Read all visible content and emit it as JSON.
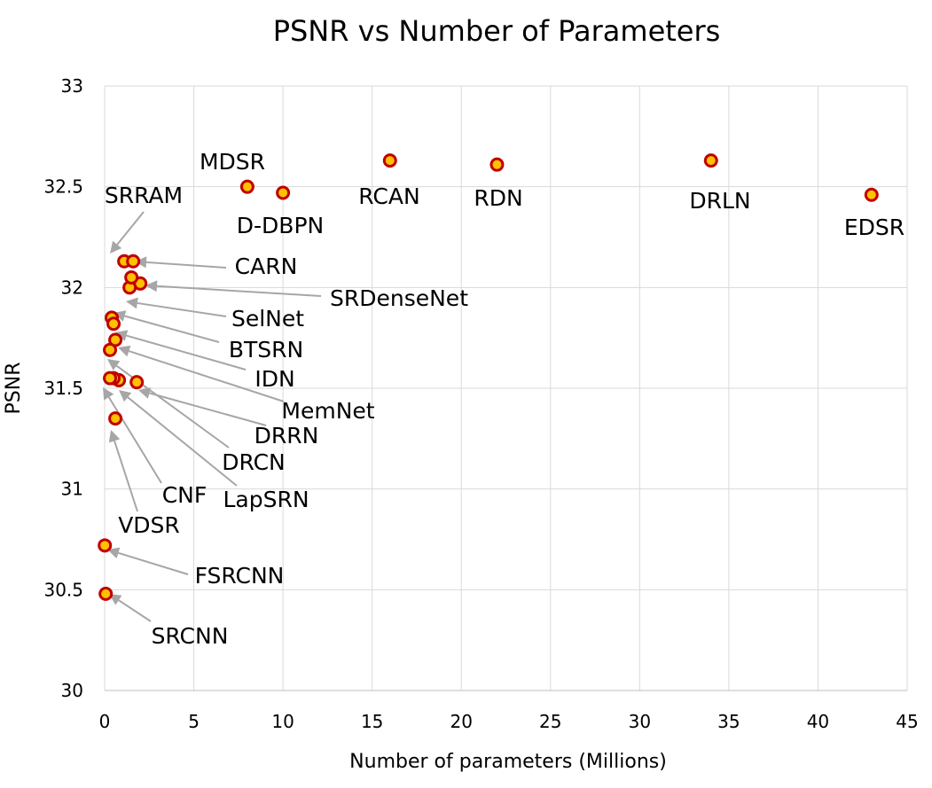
{
  "chart_data": {
    "type": "scatter",
    "title": "PSNR vs Number of Parameters",
    "xlabel": "Number of parameters (Millions)",
    "ylabel": "PSNR",
    "xlim": [
      0,
      45
    ],
    "ylim": [
      30,
      33
    ],
    "x_ticks": [
      "0",
      "5",
      "10",
      "15",
      "20",
      "25",
      "30",
      "35",
      "40",
      "45"
    ],
    "y_ticks": [
      "30",
      "30.5",
      "31",
      "31.5",
      "32",
      "32.5",
      "33"
    ],
    "grid": true,
    "marker_fill": "#FFC000",
    "marker_edge": "#C00000",
    "points": [
      {
        "name": "MDSR",
        "x": 8.0,
        "y": 32.5
      },
      {
        "name": "D-DBPN",
        "x": 10.0,
        "y": 32.47
      },
      {
        "name": "RCAN",
        "x": 16.0,
        "y": 32.63
      },
      {
        "name": "RDN",
        "x": 22.0,
        "y": 32.61
      },
      {
        "name": "DRLN",
        "x": 34.0,
        "y": 32.63
      },
      {
        "name": "EDSR",
        "x": 43.0,
        "y": 32.46
      },
      {
        "name": "SRRAM",
        "x": 1.1,
        "y": 32.13
      },
      {
        "name": "CARN",
        "x": 1.6,
        "y": 32.13
      },
      {
        "name": "SRDenseNet",
        "x": 2.0,
        "y": 32.02
      },
      {
        "name": "SelNet",
        "x": 1.4,
        "y": 32.0
      },
      {
        "name": "",
        "x": 1.5,
        "y": 32.05
      },
      {
        "name": "BTSRN",
        "x": 0.4,
        "y": 31.85
      },
      {
        "name": "",
        "x": 0.5,
        "y": 31.82
      },
      {
        "name": "IDN",
        "x": 0.6,
        "y": 31.74
      },
      {
        "name": "MemNet",
        "x": 0.3,
        "y": 31.69
      },
      {
        "name": "DRRN",
        "x": 1.8,
        "y": 31.53
      },
      {
        "name": "DRCN",
        "x": 0.8,
        "y": 31.54
      },
      {
        "name": "LapSRN",
        "x": 0.5,
        "y": 31.55
      },
      {
        "name": "CNF",
        "x": 0.3,
        "y": 31.55
      },
      {
        "name": "VDSR",
        "x": 0.6,
        "y": 31.35
      },
      {
        "name": "FSRCNN",
        "x": 0.01,
        "y": 30.72
      },
      {
        "name": "SRCNN",
        "x": 0.06,
        "y": 30.48
      }
    ]
  }
}
